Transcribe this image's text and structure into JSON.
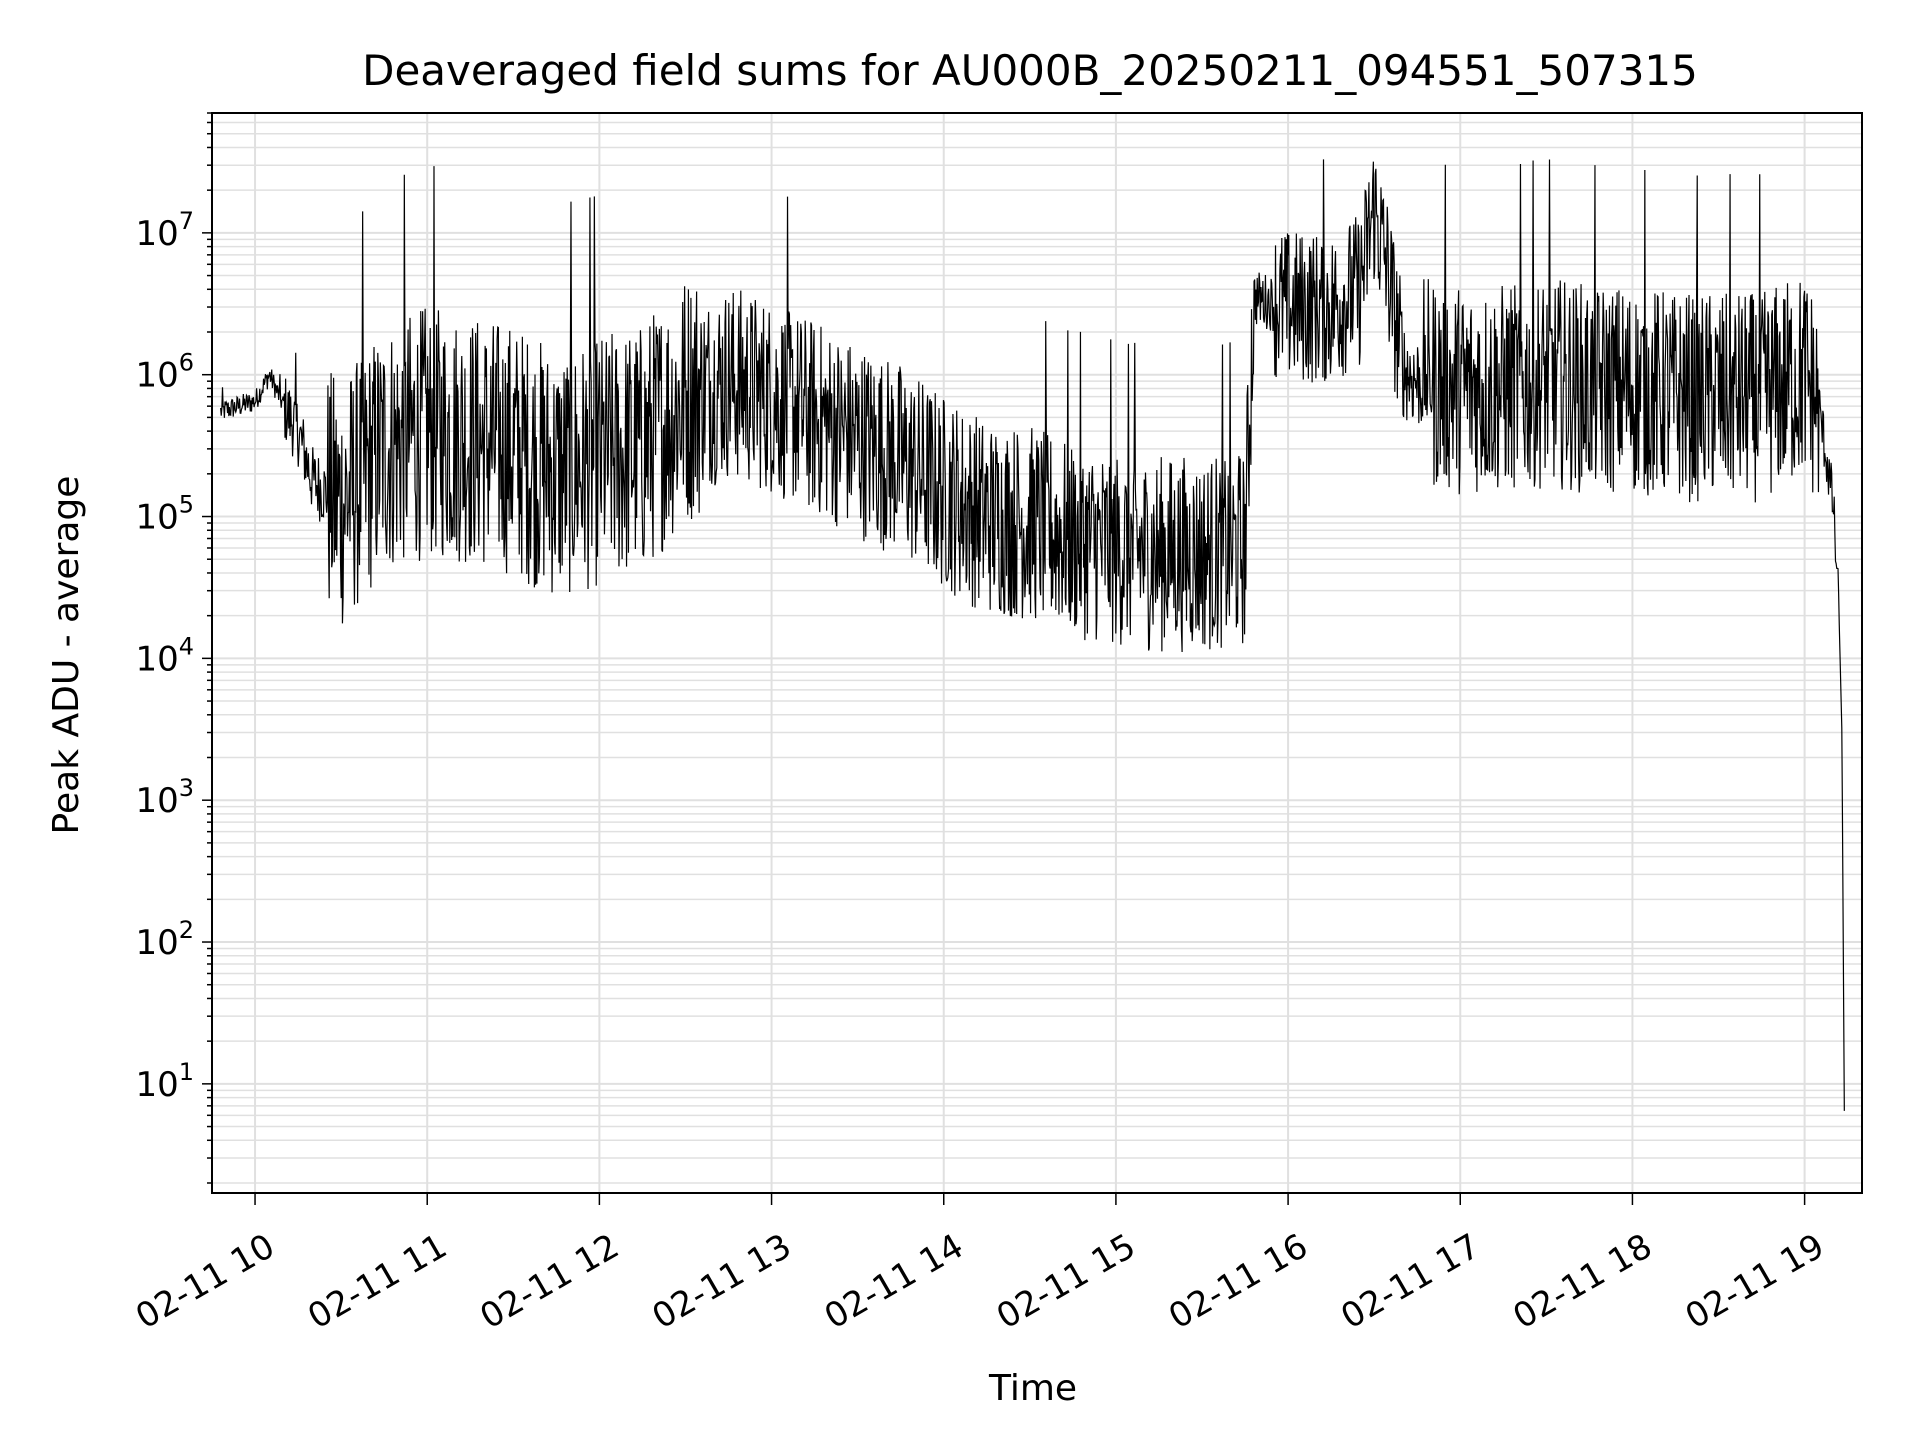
{
  "chart_data": {
    "type": "line",
    "title": "Deaveraged field sums for AU000B_20250211_094551_507315",
    "xlabel": "Time",
    "ylabel": "Peak ADU - average",
    "yscale": "log",
    "ylim": [
      1.7,
      70000000
    ],
    "xlim": [
      "2025-02-11 09:45",
      "2025-02-11 19:20"
    ],
    "grid": true,
    "grid_color": "#e0e0e0",
    "line_color": "#000000",
    "x_tick_labels": [
      "02-11 10",
      "02-11 11",
      "02-11 12",
      "02-11 13",
      "02-11 14",
      "02-11 15",
      "02-11 16",
      "02-11 17",
      "02-11 18",
      "02-11 19"
    ],
    "y_tick_labels": [
      {
        "base": "10",
        "exp": "1"
      },
      {
        "base": "10",
        "exp": "2"
      },
      {
        "base": "10",
        "exp": "3"
      },
      {
        "base": "10",
        "exp": "4"
      },
      {
        "base": "10",
        "exp": "5"
      },
      {
        "base": "10",
        "exp": "6"
      },
      {
        "base": "10",
        "exp": "7"
      }
    ],
    "series": [
      {
        "values_note_x": "time of day",
        "x": [
          "09:48",
          "10:00",
          "10:05",
          "10:10",
          "10:15",
          "10:20",
          "10:30",
          "10:45",
          "11:00",
          "11:15",
          "11:30",
          "11:45",
          "12:00",
          "12:15",
          "12:30",
          "12:45",
          "13:00",
          "13:15",
          "13:30",
          "13:45",
          "14:00",
          "14:15",
          "14:30",
          "14:45",
          "15:00",
          "15:15",
          "15:30",
          "15:45",
          "15:48",
          "16:00",
          "16:15",
          "16:25",
          "16:30",
          "16:35",
          "16:40",
          "16:45",
          "17:00",
          "17:15",
          "17:30",
          "17:45",
          "18:00",
          "18:15",
          "18:30",
          "18:45",
          "19:00",
          "19:05",
          "19:10",
          "19:12",
          "19:13",
          "19:14"
        ],
        "y": [
          550000,
          650000,
          1000000,
          600000,
          400000,
          180000,
          120000,
          300000,
          400000,
          350000,
          300000,
          200000,
          250000,
          300000,
          700000,
          900000,
          700000,
          500000,
          350000,
          250000,
          150000,
          100000,
          90000,
          70000,
          60000,
          55000,
          55000,
          60000,
          3500000,
          3000000,
          3000000,
          4000000,
          15000000,
          5000000,
          1100000,
          900000,
          800000,
          800000,
          900000,
          800000,
          800000,
          700000,
          700000,
          700000,
          1000000,
          600000,
          120000,
          20000,
          3000,
          2
        ]
      }
    ]
  }
}
